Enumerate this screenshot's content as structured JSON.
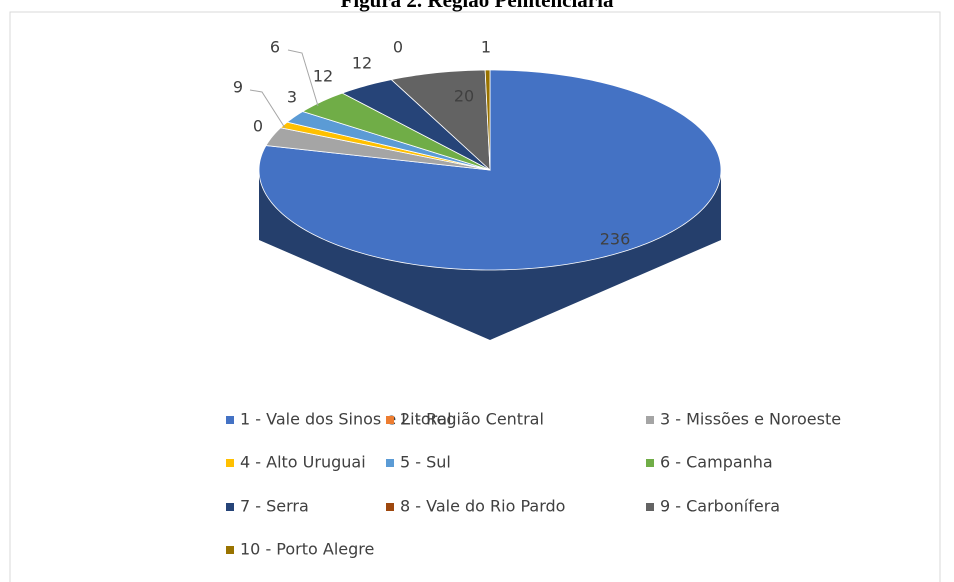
{
  "chart_data": {
    "type": "pie",
    "title": "Figura 2. Região Penitenciária",
    "categories": [
      "1 - Vale dos Sinos e Litoral",
      "2 - Região Central",
      "3 - Missões e Noroeste",
      "4 - Alto Uruguai",
      "5 - Sul",
      "6 - Campanha",
      "7 - Serra",
      "8 - Vale do Rio Pardo",
      "9 - Carbonífera",
      "10 - Porto Alegre"
    ],
    "values": [
      236,
      0,
      9,
      3,
      6,
      12,
      12,
      0,
      20,
      1
    ],
    "colors": [
      "#4472c4",
      "#ed7d31",
      "#a5a5a5",
      "#ffc000",
      "#5b9bd5",
      "#70ad47",
      "#264478",
      "#9e480e",
      "#636363",
      "#997300"
    ],
    "legend": "bottom"
  }
}
